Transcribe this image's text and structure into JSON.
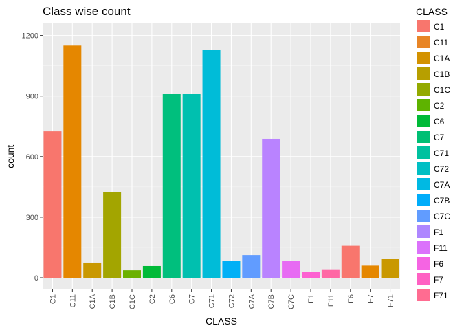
{
  "chart_data": {
    "type": "bar",
    "title": "Class wise count",
    "xlabel": "CLASS",
    "ylabel": "count",
    "ylim": [
      0,
      1260
    ],
    "yticks": [
      0,
      300,
      600,
      900,
      1200
    ],
    "categories": [
      "C1",
      "C11",
      "C1A",
      "C1B",
      "C1C",
      "C2",
      "C6",
      "C7",
      "C71",
      "C72",
      "C7A",
      "C7B",
      "C7C",
      "F1",
      "F11",
      "F6",
      "F7",
      "F71"
    ],
    "values": [
      725,
      1150,
      75,
      425,
      37,
      58,
      910,
      912,
      1128,
      85,
      112,
      688,
      82,
      28,
      42,
      158,
      60,
      93
    ],
    "colors": [
      "#F8766D",
      "#E58700",
      "#C99800",
      "#A3A500",
      "#6BB100",
      "#00BA38",
      "#00BF7D",
      "#00C0AF",
      "#00BCD8",
      "#00B0F6",
      "#619CFF",
      "#B983FF",
      "#E76BF3",
      "#FD61D1",
      "#FF67A4",
      "#F8766D",
      "#E58700",
      "#C99800"
    ],
    "legend": {
      "title": "CLASS",
      "position": "right",
      "colors": [
        "#F8766D",
        "#E88526",
        "#D39200",
        "#B79F00",
        "#93AA00",
        "#5EB300",
        "#00BA38",
        "#00BF74",
        "#00C19F",
        "#00BFC4",
        "#00B9E3",
        "#00ADFA",
        "#619CFF",
        "#AE87FF",
        "#DB72FB",
        "#F564E3",
        "#FF61C3",
        "#FF6C91"
      ]
    },
    "grid": true
  }
}
